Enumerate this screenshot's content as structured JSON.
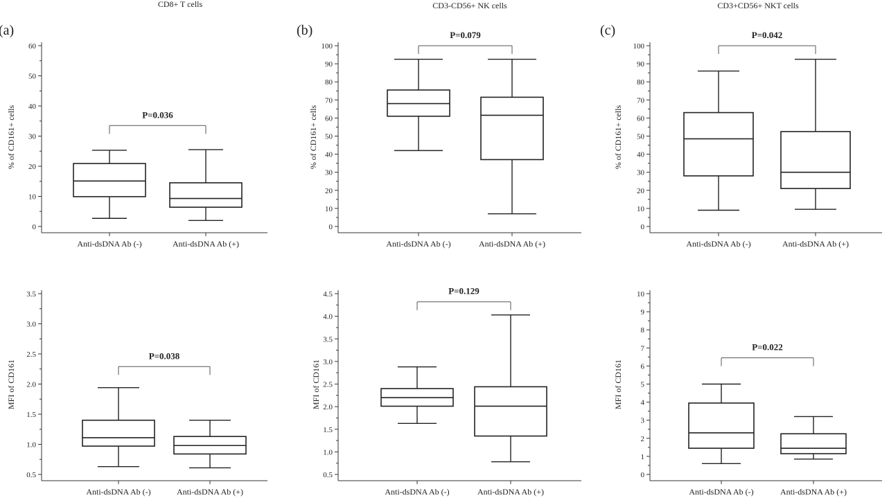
{
  "figure": {
    "column_titles": [
      "CD8+ T cells",
      "CD3-CD56+ NK cells",
      "CD3+CD56+ NKT cells"
    ],
    "panel_labels": [
      "(a)",
      "(b)",
      "(c)"
    ]
  },
  "chart_data": [
    {
      "type": "box",
      "panel": "a",
      "metric": "percent",
      "ylabel": "% of CD161+ cells",
      "ylim": [
        0,
        60
      ],
      "yticks": [
        "0",
        "10",
        "20",
        "30",
        "40",
        "50",
        "60"
      ],
      "categories": [
        "Anti-dsDNA Ab (-)",
        "Anti-dsDNA Ab (+)"
      ],
      "boxes": [
        {
          "whisker_low": 2.7,
          "q1": 9.9,
          "median": 15.1,
          "q3": 20.9,
          "whisker_high": 25.3
        },
        {
          "whisker_low": 2.0,
          "q1": 6.4,
          "median": 9.3,
          "q3": 14.5,
          "whisker_high": 25.5
        }
      ],
      "annotation": "P=0.036",
      "bracket_y": 33.5
    },
    {
      "type": "box",
      "panel": "b",
      "metric": "percent",
      "ylabel": "% of CD161+ cells",
      "ylim": [
        0,
        100
      ],
      "yticks": [
        "0",
        "10",
        "20",
        "30",
        "40",
        "50",
        "60",
        "70",
        "80",
        "90",
        "100"
      ],
      "categories": [
        "Anti-dsDNA Ab (-)",
        "Anti-dsDNA Ab (+)"
      ],
      "boxes": [
        {
          "whisker_low": 42,
          "q1": 61,
          "median": 68,
          "q3": 75.5,
          "whisker_high": 92.5
        },
        {
          "whisker_low": 7,
          "q1": 37,
          "median": 61.5,
          "q3": 71.5,
          "whisker_high": 92.5
        }
      ],
      "annotation": "P=0.079",
      "bracket_y": 100
    },
    {
      "type": "box",
      "panel": "c",
      "metric": "percent",
      "ylabel": "% of CD161+ cells",
      "ylim": [
        0,
        100
      ],
      "yticks": [
        "0",
        "10",
        "20",
        "30",
        "40",
        "50",
        "60",
        "70",
        "80",
        "90",
        "100"
      ],
      "categories": [
        "Anti-dsDNA Ab (-)",
        "Anti-dsDNA Ab (+)"
      ],
      "boxes": [
        {
          "whisker_low": 9,
          "q1": 28,
          "median": 48.5,
          "q3": 63,
          "whisker_high": 86
        },
        {
          "whisker_low": 9.5,
          "q1": 21,
          "median": 30,
          "q3": 52.5,
          "whisker_high": 92.5
        }
      ],
      "annotation": "P=0.042",
      "bracket_y": 100
    },
    {
      "type": "box",
      "panel": "a",
      "metric": "mfi",
      "ylabel": "MFI of CD161",
      "ylim": [
        0.5,
        3.5
      ],
      "yticks": [
        "0.5",
        "1.0",
        "1.5",
        "2.0",
        "2.5",
        "3.0",
        "3.5"
      ],
      "categories": [
        "Anti-dsDNA Ab (-)",
        "Anti-dsDNA Ab (+)"
      ],
      "boxes": [
        {
          "whisker_low": 0.63,
          "q1": 0.97,
          "median": 1.11,
          "q3": 1.4,
          "whisker_high": 1.94
        },
        {
          "whisker_low": 0.61,
          "q1": 0.84,
          "median": 0.98,
          "q3": 1.13,
          "whisker_high": 1.4
        }
      ],
      "annotation": "P=0.038",
      "bracket_y": 2.29
    },
    {
      "type": "box",
      "panel": "b",
      "metric": "mfi",
      "ylabel": "MFI of CD161",
      "ylim": [
        0.5,
        4.5
      ],
      "yticks": [
        "0.5",
        "1.0",
        "1.5",
        "2.0",
        "2.5",
        "3.0",
        "3.5",
        "4.0",
        "4.5"
      ],
      "categories": [
        "Anti-dsDNA Ab (-)",
        "Anti-dsDNA Ab (+)"
      ],
      "boxes": [
        {
          "whisker_low": 1.63,
          "q1": 2.01,
          "median": 2.2,
          "q3": 2.4,
          "whisker_high": 2.88
        },
        {
          "whisker_low": 0.78,
          "q1": 1.35,
          "median": 2.01,
          "q3": 2.44,
          "whisker_high": 4.03
        }
      ],
      "annotation": "P=0.129",
      "bracket_y": 4.32
    },
    {
      "type": "box",
      "panel": "c",
      "metric": "mfi",
      "ylabel": "MFI of CD161",
      "ylim": [
        0,
        10
      ],
      "yticks": [
        "0",
        "1",
        "2",
        "3",
        "4",
        "5",
        "6",
        "7",
        "8",
        "9",
        "10"
      ],
      "categories": [
        "Anti-dsDNA Ab (-)",
        "Anti-dsDNA Ab (+)"
      ],
      "boxes": [
        {
          "whisker_low": 0.6,
          "q1": 1.45,
          "median": 2.3,
          "q3": 3.95,
          "whisker_high": 5.0
        },
        {
          "whisker_low": 0.85,
          "q1": 1.15,
          "median": 1.45,
          "q3": 2.25,
          "whisker_high": 3.2
        }
      ],
      "annotation": "P=0.022",
      "bracket_y": 6.45
    }
  ]
}
